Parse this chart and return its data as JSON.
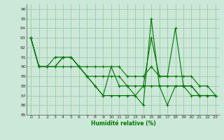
{
  "title": "",
  "xlabel": "Humidité relative (%)",
  "ylabel": "",
  "background_color": "#cce8d8",
  "grid_color": "#99ccaa",
  "line_color": "#007700",
  "xlim": [
    -0.5,
    23.5
  ],
  "ylim": [
    85,
    96.5
  ],
  "yticks": [
    85,
    86,
    87,
    88,
    89,
    90,
    91,
    92,
    93,
    94,
    95,
    96
  ],
  "xticks": [
    0,
    1,
    2,
    3,
    4,
    5,
    6,
    7,
    8,
    9,
    10,
    11,
    12,
    13,
    14,
    15,
    16,
    17,
    18,
    19,
    20,
    21,
    22,
    23
  ],
  "series": [
    [
      93,
      90,
      90,
      90,
      91,
      91,
      90,
      89,
      88,
      87,
      90,
      88,
      88,
      87,
      88,
      93,
      89,
      89,
      94,
      88,
      88,
      87,
      87,
      87
    ],
    [
      93,
      90,
      90,
      90,
      91,
      91,
      90,
      90,
      90,
      90,
      90,
      90,
      89,
      89,
      89,
      90,
      89,
      89,
      89,
      89,
      89,
      88,
      88,
      87
    ],
    [
      93,
      90,
      90,
      91,
      91,
      91,
      90,
      89,
      88,
      87,
      87,
      87,
      87,
      87,
      86,
      95,
      88,
      86,
      88,
      88,
      87,
      87,
      87,
      87
    ],
    [
      93,
      90,
      90,
      90,
      90,
      90,
      90,
      89,
      89,
      89,
      89,
      89,
      88,
      88,
      88,
      88,
      88,
      88,
      88,
      88,
      88,
      87,
      87,
      87
    ]
  ]
}
